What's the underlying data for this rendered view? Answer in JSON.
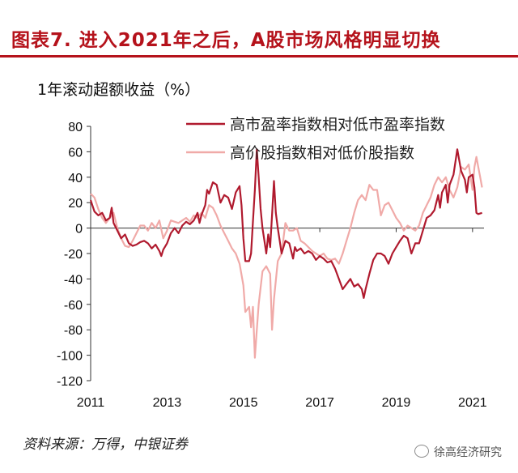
{
  "title": "图表7. 进入2021年之后，A股市场风格明显切换",
  "source": "资料来源：万得，中银证券",
  "watermark": "徐高经济研究",
  "colors": {
    "title": "#b5121b",
    "series1": "#b01a2e",
    "series2": "#f0aaa8"
  },
  "chart_data": {
    "type": "line",
    "ylabel": "1年滚动超额收益（%）",
    "ylim": [
      -120,
      80
    ],
    "yticks": [
      80,
      60,
      40,
      20,
      0,
      -20,
      -40,
      -60,
      -80,
      -100,
      -120
    ],
    "xlim": [
      2011.0,
      2021.3
    ],
    "xticks": [
      2011,
      2013,
      2015,
      2017,
      2019,
      2021
    ],
    "legend_position": "top-right",
    "grid": false,
    "series": [
      {
        "name": "高市盈率指数相对低市盈率指数",
        "color": "#b01a2e",
        "points": [
          [
            2011.0,
            22
          ],
          [
            2011.1,
            13
          ],
          [
            2011.2,
            10
          ],
          [
            2011.3,
            12
          ],
          [
            2011.4,
            6
          ],
          [
            2011.5,
            8
          ],
          [
            2011.55,
            16
          ],
          [
            2011.6,
            4
          ],
          [
            2011.7,
            -2
          ],
          [
            2011.8,
            -8
          ],
          [
            2011.9,
            -5
          ],
          [
            2012.0,
            -12
          ],
          [
            2012.1,
            -14
          ],
          [
            2012.2,
            -13
          ],
          [
            2012.3,
            -11
          ],
          [
            2012.4,
            -10
          ],
          [
            2012.5,
            -12
          ],
          [
            2012.6,
            -16
          ],
          [
            2012.7,
            -13
          ],
          [
            2012.8,
            -18
          ],
          [
            2012.85,
            -22
          ],
          [
            2012.9,
            -17
          ],
          [
            2013.0,
            -12
          ],
          [
            2013.1,
            -4
          ],
          [
            2013.2,
            0
          ],
          [
            2013.3,
            -4
          ],
          [
            2013.4,
            2
          ],
          [
            2013.5,
            5
          ],
          [
            2013.6,
            3
          ],
          [
            2013.7,
            6
          ],
          [
            2013.8,
            12
          ],
          [
            2013.85,
            4
          ],
          [
            2013.9,
            10
          ],
          [
            2014.0,
            18
          ],
          [
            2014.05,
            30
          ],
          [
            2014.1,
            27
          ],
          [
            2014.2,
            36
          ],
          [
            2014.3,
            34
          ],
          [
            2014.4,
            20
          ],
          [
            2014.5,
            26
          ],
          [
            2014.6,
            24
          ],
          [
            2014.7,
            15
          ],
          [
            2014.8,
            28
          ],
          [
            2014.9,
            33
          ],
          [
            2014.95,
            18
          ],
          [
            2015.0,
            -8
          ],
          [
            2015.05,
            -26
          ],
          [
            2015.15,
            -26
          ],
          [
            2015.2,
            -20
          ],
          [
            2015.25,
            5
          ],
          [
            2015.3,
            30
          ],
          [
            2015.35,
            62
          ],
          [
            2015.4,
            40
          ],
          [
            2015.45,
            15
          ],
          [
            2015.5,
            0
          ],
          [
            2015.55,
            -10
          ],
          [
            2015.6,
            -20
          ],
          [
            2015.65,
            -5
          ],
          [
            2015.7,
            -15
          ],
          [
            2015.75,
            10
          ],
          [
            2015.8,
            37
          ],
          [
            2015.85,
            12
          ],
          [
            2015.9,
            0
          ],
          [
            2015.95,
            -10
          ],
          [
            2016.0,
            -20
          ],
          [
            2016.1,
            -10
          ],
          [
            2016.2,
            -12
          ],
          [
            2016.3,
            -24
          ],
          [
            2016.35,
            -15
          ],
          [
            2016.4,
            -18
          ],
          [
            2016.5,
            -16
          ],
          [
            2016.6,
            -20
          ],
          [
            2016.7,
            -18
          ],
          [
            2016.8,
            -20
          ],
          [
            2016.9,
            -25
          ],
          [
            2017.0,
            -22
          ],
          [
            2017.1,
            -24
          ],
          [
            2017.2,
            -27
          ],
          [
            2017.3,
            -26
          ],
          [
            2017.4,
            -32
          ],
          [
            2017.5,
            -40
          ],
          [
            2017.6,
            -48
          ],
          [
            2017.7,
            -44
          ],
          [
            2017.8,
            -40
          ],
          [
            2017.9,
            -46
          ],
          [
            2018.0,
            -44
          ],
          [
            2018.1,
            -48
          ],
          [
            2018.15,
            -55
          ],
          [
            2018.2,
            -48
          ],
          [
            2018.3,
            -36
          ],
          [
            2018.4,
            -25
          ],
          [
            2018.5,
            -20
          ],
          [
            2018.6,
            -20
          ],
          [
            2018.7,
            -22
          ],
          [
            2018.8,
            -28
          ],
          [
            2018.9,
            -20
          ],
          [
            2019.0,
            -15
          ],
          [
            2019.1,
            -10
          ],
          [
            2019.2,
            -6
          ],
          [
            2019.3,
            -8
          ],
          [
            2019.4,
            -20
          ],
          [
            2019.5,
            -12
          ],
          [
            2019.6,
            -12
          ],
          [
            2019.7,
            -2
          ],
          [
            2019.8,
            8
          ],
          [
            2019.9,
            10
          ],
          [
            2020.0,
            14
          ],
          [
            2020.1,
            26
          ],
          [
            2020.15,
            16
          ],
          [
            2020.2,
            28
          ],
          [
            2020.3,
            34
          ],
          [
            2020.35,
            20
          ],
          [
            2020.4,
            34
          ],
          [
            2020.5,
            42
          ],
          [
            2020.6,
            62
          ],
          [
            2020.7,
            45
          ],
          [
            2020.8,
            38
          ],
          [
            2020.85,
            28
          ],
          [
            2020.9,
            40
          ],
          [
            2021.0,
            42
          ],
          [
            2021.05,
            32
          ],
          [
            2021.1,
            12
          ],
          [
            2021.15,
            11
          ],
          [
            2021.25,
            12
          ]
        ]
      },
      {
        "name": "高价股指数相对低价股指数",
        "color": "#f0aaa8",
        "points": [
          [
            2011.0,
            27
          ],
          [
            2011.1,
            24
          ],
          [
            2011.2,
            15
          ],
          [
            2011.3,
            8
          ],
          [
            2011.4,
            4
          ],
          [
            2011.5,
            8
          ],
          [
            2011.6,
            12
          ],
          [
            2011.7,
            0
          ],
          [
            2011.8,
            -8
          ],
          [
            2011.9,
            -14
          ],
          [
            2012.0,
            -15
          ],
          [
            2012.1,
            -10
          ],
          [
            2012.2,
            -4
          ],
          [
            2012.3,
            2
          ],
          [
            2012.4,
            2
          ],
          [
            2012.5,
            -2
          ],
          [
            2012.6,
            4
          ],
          [
            2012.7,
            0
          ],
          [
            2012.8,
            6
          ],
          [
            2012.9,
            -8
          ],
          [
            2013.0,
            -2
          ],
          [
            2013.1,
            6
          ],
          [
            2013.2,
            5
          ],
          [
            2013.3,
            4
          ],
          [
            2013.4,
            6
          ],
          [
            2013.5,
            8
          ],
          [
            2013.6,
            5
          ],
          [
            2013.7,
            10
          ],
          [
            2013.8,
            8
          ],
          [
            2013.9,
            12
          ],
          [
            2014.0,
            8
          ],
          [
            2014.1,
            18
          ],
          [
            2014.2,
            16
          ],
          [
            2014.3,
            10
          ],
          [
            2014.4,
            2
          ],
          [
            2014.5,
            -4
          ],
          [
            2014.6,
            -10
          ],
          [
            2014.7,
            -16
          ],
          [
            2014.8,
            -20
          ],
          [
            2014.9,
            -28
          ],
          [
            2015.0,
            -45
          ],
          [
            2015.05,
            -66
          ],
          [
            2015.15,
            -62
          ],
          [
            2015.2,
            -78
          ],
          [
            2015.25,
            -62
          ],
          [
            2015.3,
            -102
          ],
          [
            2015.35,
            -80
          ],
          [
            2015.4,
            -60
          ],
          [
            2015.5,
            -34
          ],
          [
            2015.6,
            -30
          ],
          [
            2015.7,
            -36
          ],
          [
            2015.75,
            -80
          ],
          [
            2015.8,
            -56
          ],
          [
            2015.9,
            -26
          ],
          [
            2016.0,
            -20
          ],
          [
            2016.1,
            4
          ],
          [
            2016.2,
            -2
          ],
          [
            2016.3,
            -2
          ],
          [
            2016.4,
            0
          ],
          [
            2016.5,
            -10
          ],
          [
            2016.6,
            -12
          ],
          [
            2016.7,
            -15
          ],
          [
            2016.8,
            -18
          ],
          [
            2016.9,
            -20
          ],
          [
            2017.0,
            -22
          ],
          [
            2017.1,
            -20
          ],
          [
            2017.2,
            -24
          ],
          [
            2017.3,
            -25
          ],
          [
            2017.4,
            -24
          ],
          [
            2017.5,
            -28
          ],
          [
            2017.6,
            -20
          ],
          [
            2017.7,
            -10
          ],
          [
            2017.8,
            0
          ],
          [
            2017.9,
            12
          ],
          [
            2018.0,
            22
          ],
          [
            2018.1,
            26
          ],
          [
            2018.2,
            22
          ],
          [
            2018.3,
            34
          ],
          [
            2018.4,
            30
          ],
          [
            2018.5,
            30
          ],
          [
            2018.6,
            10
          ],
          [
            2018.7,
            18
          ],
          [
            2018.8,
            20
          ],
          [
            2018.9,
            14
          ],
          [
            2019.0,
            8
          ],
          [
            2019.1,
            4
          ],
          [
            2019.2,
            -2
          ],
          [
            2019.3,
            2
          ],
          [
            2019.4,
            0
          ],
          [
            2019.5,
            -2
          ],
          [
            2019.6,
            2
          ],
          [
            2019.7,
            12
          ],
          [
            2019.8,
            18
          ],
          [
            2019.9,
            24
          ],
          [
            2020.0,
            34
          ],
          [
            2020.1,
            40
          ],
          [
            2020.2,
            36
          ],
          [
            2020.3,
            40
          ],
          [
            2020.4,
            30
          ],
          [
            2020.5,
            24
          ],
          [
            2020.6,
            32
          ],
          [
            2020.7,
            48
          ],
          [
            2020.8,
            46
          ],
          [
            2020.9,
            50
          ],
          [
            2021.0,
            30
          ],
          [
            2021.05,
            48
          ],
          [
            2021.1,
            56
          ],
          [
            2021.15,
            48
          ],
          [
            2021.2,
            40
          ],
          [
            2021.25,
            32
          ]
        ]
      }
    ]
  }
}
